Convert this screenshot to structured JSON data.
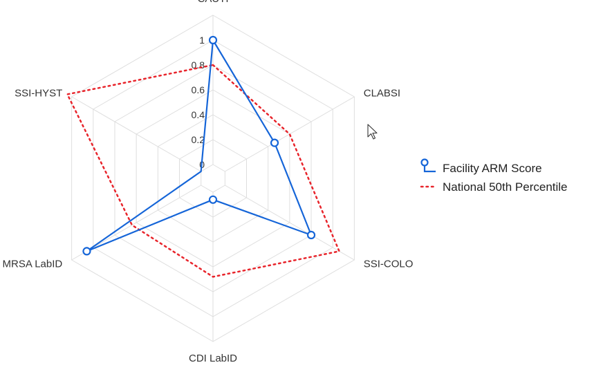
{
  "chart_data": {
    "type": "radar",
    "categories": [
      "CAUTI",
      "CLABSI",
      "SSI-COLO",
      "CDI LabID",
      "MRSA LabID",
      "SSI-HYST"
    ],
    "tick_labels": [
      "0",
      "0.2",
      "0.4",
      "0.6",
      "0.8",
      "1"
    ],
    "series": [
      {
        "name": "Facility ARM Score",
        "values": [
          1.0,
          0.46,
          0.8,
          0.06,
          1.06,
          0.0
        ],
        "color": "#1565d8",
        "style": "solid-with-circle-markers"
      },
      {
        "name": "National 50th Percentile",
        "values": [
          0.8,
          0.6,
          1.06,
          0.68,
          0.64,
          1.24
        ],
        "color": "#e8242b",
        "style": "dotted"
      }
    ],
    "grid": true,
    "legend_position": "right"
  },
  "cursor_icon": "mouse-pointer-icon"
}
